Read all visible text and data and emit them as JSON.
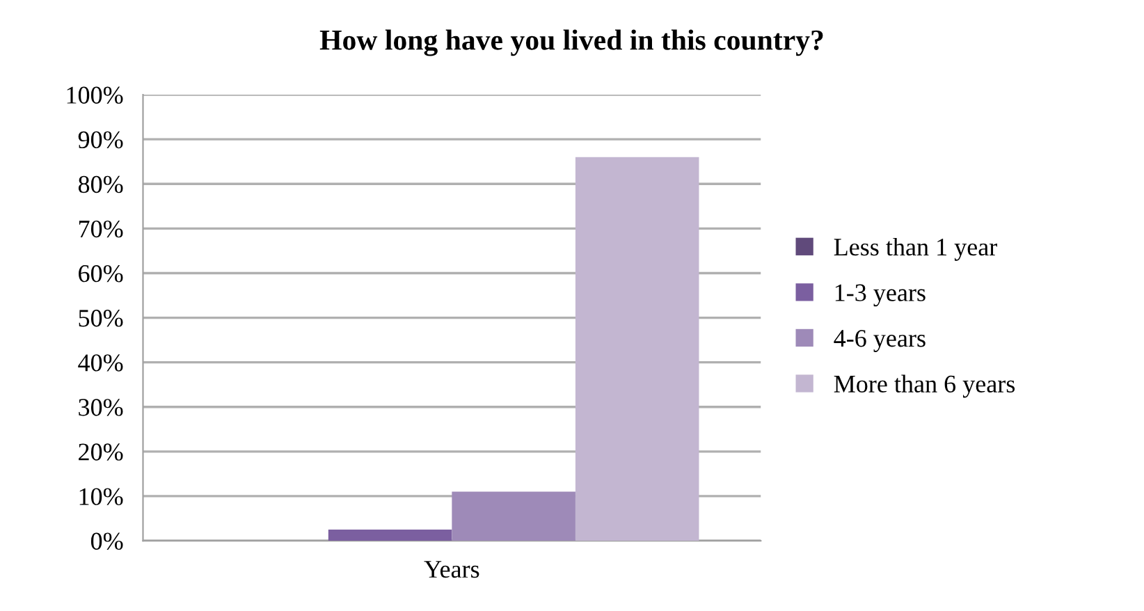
{
  "chart_data": {
    "type": "bar",
    "title": "How long have you lived in this country?",
    "xlabel": "Years",
    "categories": [
      null
    ],
    "series": [
      {
        "name": "Less than 1 year",
        "color": "#604a7b",
        "values": [
          0
        ]
      },
      {
        "name": "1-3 years",
        "color": "#7b5fa0",
        "values": [
          2.5
        ]
      },
      {
        "name": "4-6 years",
        "color": "#9e8ab8",
        "values": [
          11
        ]
      },
      {
        "name": "More than 6 years",
        "color": "#c3b6d1",
        "values": [
          86
        ]
      }
    ],
    "ylim": [
      0,
      100
    ],
    "yticks": [
      {
        "value": 0,
        "label": "0%"
      },
      {
        "value": 10,
        "label": "10%"
      },
      {
        "value": 20,
        "label": "20%"
      },
      {
        "value": 30,
        "label": "30%"
      },
      {
        "value": 40,
        "label": "40%"
      },
      {
        "value": 50,
        "label": "50%"
      },
      {
        "value": 60,
        "label": "60%"
      },
      {
        "value": 70,
        "label": "70%"
      },
      {
        "value": 80,
        "label": "80%"
      },
      {
        "value": 90,
        "label": "90%"
      },
      {
        "value": 100,
        "label": "100%"
      }
    ],
    "grid": "y",
    "legend": "right"
  }
}
